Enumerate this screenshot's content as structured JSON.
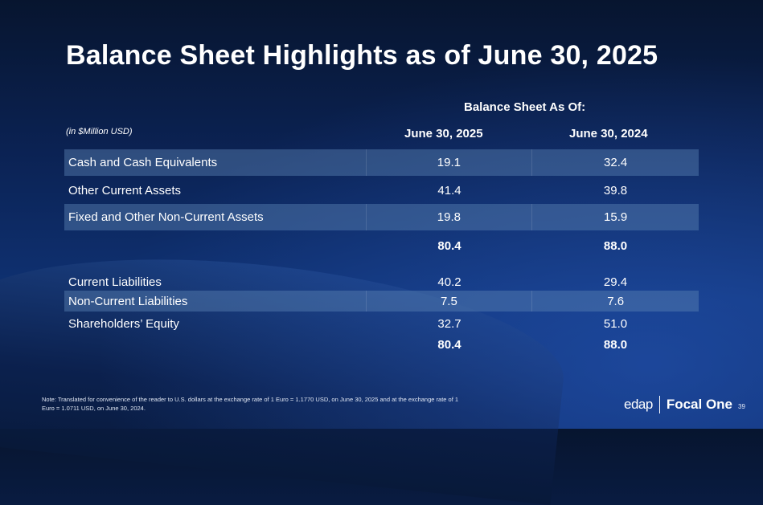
{
  "title": "Balance Sheet Highlights as of June 30, 2025",
  "table": {
    "group_header": "Balance Sheet As Of:",
    "unit_label": "(in $Million USD)",
    "columns": [
      "June 30, 2025",
      "June 30, 2024"
    ],
    "rows": [
      {
        "label": "Cash and Cash Equivalents",
        "values": [
          "19.1",
          "32.4"
        ]
      },
      {
        "label": "Other Current Assets",
        "values": [
          "41.4",
          "39.8"
        ]
      },
      {
        "label": "Fixed and Other Non-Current Assets",
        "values": [
          "19.8",
          "15.9"
        ]
      },
      {
        "label": "",
        "values": [
          "80.4",
          "88.0"
        ]
      },
      {
        "label": "Current Liabilities",
        "values": [
          "40.2",
          "29.4"
        ]
      },
      {
        "label": "Non-Current Liabilities",
        "values": [
          "7.5",
          "7.6"
        ]
      },
      {
        "label": "Shareholders’ Equity",
        "values": [
          "32.7",
          "51.0"
        ]
      },
      {
        "label": "",
        "values": [
          "80.4",
          "88.0"
        ]
      }
    ]
  },
  "note": "Note: Translated for convenience of the reader to U.S. dollars at the exchange rate of 1 Euro = 1.1770 USD, on June 30, 2025 and at the exchange rate of 1 Euro = 1.0711 USD, on June 30, 2024.",
  "logo": {
    "left": "edap",
    "right": "Focal One"
  },
  "page_number": "39",
  "colors": {
    "background": "#0b2253",
    "row_shade": "#3a5f8c"
  }
}
